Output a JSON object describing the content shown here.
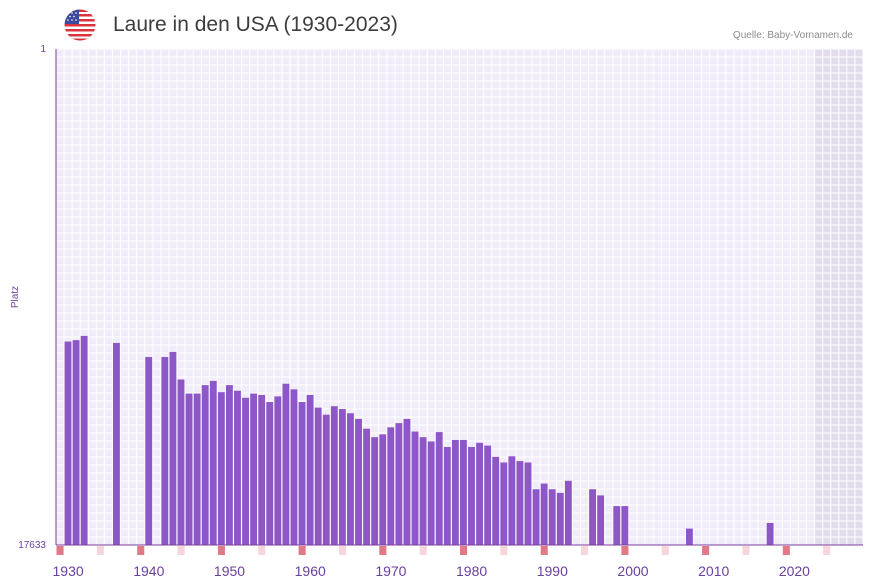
{
  "header": {
    "title": "Laure in den USA (1930-2023)",
    "source": "Quelle: Baby-Vornamen.de",
    "flag_icon": "us-flag-icon"
  },
  "colors": {
    "bar": "#8d57c7",
    "plot_bg": "#f1ecfa",
    "grid": "#ffffff",
    "future_band": "#e2dcec",
    "axis": "#7b3f9e",
    "tick_label": "#6b3fa0",
    "decade_marker": "#e07a86",
    "half_decade_marker": "#f6d6db"
  },
  "chart_data": {
    "type": "bar",
    "title": "Laure in den USA (1930-2023)",
    "xlabel": "",
    "ylabel": "Platz",
    "y_inverted": true,
    "ylim": [
      1,
      17633
    ],
    "y_tick_labels": [
      "1",
      "17633"
    ],
    "x_range": [
      1929,
      2028
    ],
    "x_tick_labels": [
      "1930",
      "1940",
      "1950",
      "1960",
      "1970",
      "1980",
      "1990",
      "2000",
      "2010",
      "2020"
    ],
    "x_ticks": [
      1930,
      1940,
      1950,
      1960,
      1970,
      1980,
      1990,
      2000,
      2010,
      2020
    ],
    "years": [
      1930,
      1931,
      1932,
      1936,
      1940,
      1942,
      1943,
      1944,
      1945,
      1946,
      1947,
      1948,
      1949,
      1950,
      1951,
      1952,
      1953,
      1954,
      1955,
      1956,
      1957,
      1958,
      1959,
      1960,
      1961,
      1962,
      1963,
      1964,
      1965,
      1966,
      1967,
      1968,
      1969,
      1970,
      1971,
      1972,
      1973,
      1974,
      1975,
      1976,
      1977,
      1978,
      1979,
      1980,
      1981,
      1982,
      1983,
      1984,
      1985,
      1986,
      1987,
      1988,
      1989,
      1990,
      1991,
      1992,
      1995,
      1996,
      1998,
      1999,
      2007,
      2017
    ],
    "values": [
      10400,
      10350,
      10200,
      10450,
      10950,
      10950,
      10770,
      11750,
      12250,
      12250,
      11950,
      11800,
      12200,
      11950,
      12150,
      12400,
      12250,
      12300,
      12550,
      12350,
      11900,
      12100,
      12550,
      12300,
      12750,
      13000,
      12700,
      12800,
      12950,
      13150,
      13500,
      13800,
      13700,
      13450,
      13300,
      13150,
      13600,
      13800,
      13950,
      13620,
      14150,
      13900,
      13900,
      14150,
      14000,
      14100,
      14500,
      14700,
      14480,
      14650,
      14700,
      15650,
      15450,
      15650,
      15780,
      15350,
      15650,
      15870,
      16250,
      16250,
      17050,
      16850
    ]
  }
}
